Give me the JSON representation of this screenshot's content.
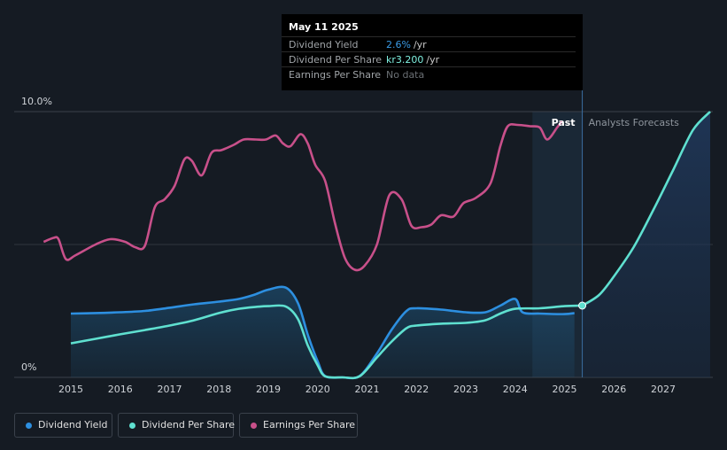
{
  "tooltip": {
    "date": "May 11 2025",
    "rows": [
      {
        "label": "Dividend Yield",
        "value": "2.6%",
        "unit": "/yr",
        "color": "#3a9be6"
      },
      {
        "label": "Dividend Per Share",
        "value": "kr3.200",
        "unit": "/yr",
        "color": "#7ff0e0"
      },
      {
        "label": "Earnings Per Share",
        "value": "No data",
        "unit": "",
        "color": "#6b7075"
      }
    ]
  },
  "legend": [
    {
      "label": "Dividend Yield",
      "color": "#2d8fe0"
    },
    {
      "label": "Dividend Per Share",
      "color": "#5fe0d0"
    },
    {
      "label": "Earnings Per Share",
      "color": "#c8508a"
    }
  ],
  "chart_data": {
    "type": "line",
    "y_labels": [
      "10.0%",
      "0%"
    ],
    "ylim": [
      0,
      10
    ],
    "xlim": [
      2014.45,
      2027.95
    ],
    "x_ticks": [
      "2015",
      "2016",
      "2017",
      "2018",
      "2019",
      "2020",
      "2021",
      "2022",
      "2023",
      "2024",
      "2025",
      "2026",
      "2027"
    ],
    "past_label": "Past",
    "forecast_label": "Analysts Forecasts",
    "forecast_start": 2024.35,
    "current_date": 2025.36,
    "colors": {
      "yield": "#2d8fe0",
      "dps": "#5fe0d0",
      "eps": "#c8508a"
    },
    "series": [
      {
        "name": "Dividend Yield",
        "points": [
          [
            2015.0,
            2.4
          ],
          [
            2015.5,
            2.42
          ],
          [
            2016.0,
            2.45
          ],
          [
            2016.5,
            2.5
          ],
          [
            2017.0,
            2.62
          ],
          [
            2017.5,
            2.75
          ],
          [
            2018.0,
            2.85
          ],
          [
            2018.4,
            2.95
          ],
          [
            2018.7,
            3.1
          ],
          [
            2019.0,
            3.3
          ],
          [
            2019.35,
            3.38
          ],
          [
            2019.6,
            2.8
          ],
          [
            2019.8,
            1.6
          ],
          [
            2020.0,
            0.6
          ],
          [
            2020.15,
            0.05
          ],
          [
            2020.5,
            0.0
          ],
          [
            2020.85,
            0.05
          ],
          [
            2021.2,
            0.9
          ],
          [
            2021.5,
            1.8
          ],
          [
            2021.8,
            2.5
          ],
          [
            2022.0,
            2.6
          ],
          [
            2022.5,
            2.55
          ],
          [
            2023.0,
            2.45
          ],
          [
            2023.4,
            2.45
          ],
          [
            2023.7,
            2.7
          ],
          [
            2024.0,
            2.95
          ],
          [
            2024.15,
            2.45
          ],
          [
            2024.5,
            2.4
          ],
          [
            2025.0,
            2.38
          ],
          [
            2025.2,
            2.42
          ]
        ]
      },
      {
        "name": "Dividend Per Share",
        "points": [
          [
            2015.0,
            1.28
          ],
          [
            2015.5,
            1.45
          ],
          [
            2016.0,
            1.62
          ],
          [
            2016.5,
            1.78
          ],
          [
            2017.0,
            1.95
          ],
          [
            2017.5,
            2.15
          ],
          [
            2018.0,
            2.42
          ],
          [
            2018.4,
            2.58
          ],
          [
            2018.8,
            2.66
          ],
          [
            2019.0,
            2.68
          ],
          [
            2019.35,
            2.67
          ],
          [
            2019.6,
            2.2
          ],
          [
            2019.8,
            1.2
          ],
          [
            2020.0,
            0.45
          ],
          [
            2020.15,
            0.04
          ],
          [
            2020.5,
            0.0
          ],
          [
            2020.85,
            0.04
          ],
          [
            2021.2,
            0.75
          ],
          [
            2021.5,
            1.35
          ],
          [
            2021.8,
            1.85
          ],
          [
            2022.0,
            1.95
          ],
          [
            2022.5,
            2.02
          ],
          [
            2023.0,
            2.05
          ],
          [
            2023.4,
            2.15
          ],
          [
            2023.7,
            2.4
          ],
          [
            2024.0,
            2.58
          ],
          [
            2024.5,
            2.6
          ],
          [
            2025.0,
            2.68
          ],
          [
            2025.36,
            2.7
          ]
        ]
      },
      {
        "name": "Dividend Per Share Forecast",
        "points": [
          [
            2025.36,
            2.7
          ],
          [
            2025.7,
            3.1
          ],
          [
            2026.0,
            3.8
          ],
          [
            2026.4,
            4.9
          ],
          [
            2026.8,
            6.3
          ],
          [
            2027.2,
            7.8
          ],
          [
            2027.6,
            9.3
          ],
          [
            2027.95,
            10.0
          ]
        ]
      },
      {
        "name": "Earnings Per Share",
        "points": [
          [
            2014.45,
            5.1
          ],
          [
            2014.65,
            5.25
          ],
          [
            2014.75,
            5.2
          ],
          [
            2014.9,
            4.45
          ],
          [
            2015.1,
            4.6
          ],
          [
            2015.5,
            5.0
          ],
          [
            2015.8,
            5.2
          ],
          [
            2016.1,
            5.1
          ],
          [
            2016.3,
            4.9
          ],
          [
            2016.5,
            4.95
          ],
          [
            2016.7,
            6.4
          ],
          [
            2016.9,
            6.7
          ],
          [
            2017.1,
            7.2
          ],
          [
            2017.3,
            8.2
          ],
          [
            2017.45,
            8.15
          ],
          [
            2017.65,
            7.6
          ],
          [
            2017.85,
            8.45
          ],
          [
            2018.05,
            8.55
          ],
          [
            2018.3,
            8.75
          ],
          [
            2018.5,
            8.95
          ],
          [
            2018.75,
            8.95
          ],
          [
            2018.95,
            8.95
          ],
          [
            2019.15,
            9.1
          ],
          [
            2019.3,
            8.8
          ],
          [
            2019.45,
            8.7
          ],
          [
            2019.65,
            9.15
          ],
          [
            2019.8,
            8.8
          ],
          [
            2019.95,
            8.0
          ],
          [
            2020.15,
            7.4
          ],
          [
            2020.35,
            5.8
          ],
          [
            2020.55,
            4.5
          ],
          [
            2020.75,
            4.05
          ],
          [
            2020.95,
            4.2
          ],
          [
            2021.2,
            5.0
          ],
          [
            2021.45,
            6.85
          ],
          [
            2021.7,
            6.7
          ],
          [
            2021.9,
            5.7
          ],
          [
            2022.1,
            5.65
          ],
          [
            2022.3,
            5.75
          ],
          [
            2022.5,
            6.1
          ],
          [
            2022.75,
            6.05
          ],
          [
            2022.95,
            6.55
          ],
          [
            2023.2,
            6.75
          ],
          [
            2023.5,
            7.3
          ],
          [
            2023.7,
            8.7
          ],
          [
            2023.85,
            9.45
          ],
          [
            2024.05,
            9.5
          ],
          [
            2024.3,
            9.45
          ],
          [
            2024.5,
            9.4
          ],
          [
            2024.65,
            8.95
          ],
          [
            2024.85,
            9.4
          ],
          [
            2024.95,
            9.65
          ]
        ]
      }
    ]
  }
}
